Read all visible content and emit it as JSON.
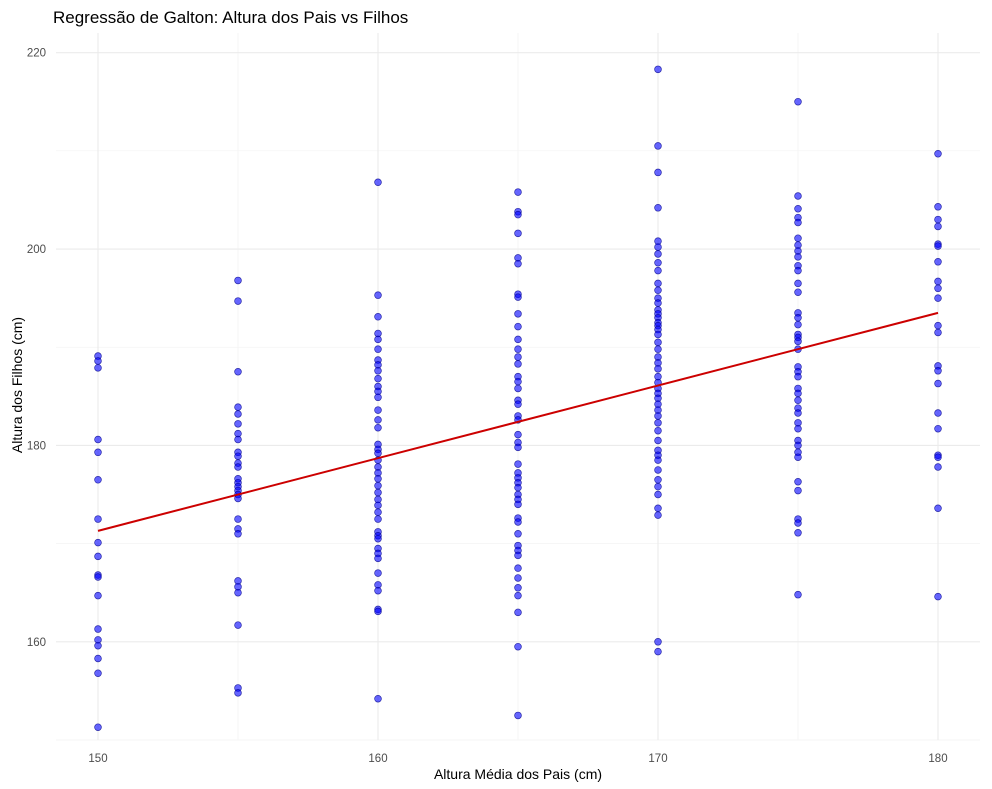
{
  "chart_data": {
    "type": "scatter",
    "title": "Regressão de Galton: Altura dos Pais vs Filhos",
    "xlabel": "Altura Média dos Pais (cm)",
    "ylabel": "Altura dos Filhos (cm)",
    "xlim": [
      148.5,
      181.5
    ],
    "ylim": [
      150,
      222
    ],
    "x_ticks": [
      150,
      160,
      170,
      180
    ],
    "y_ticks": [
      160,
      180,
      200,
      220
    ],
    "x_minor_ticks": [
      155,
      165,
      175
    ],
    "y_minor_ticks": [
      150,
      170,
      190,
      210
    ],
    "grid": true,
    "legend": "none",
    "point_color": "#0000ff",
    "line_color": "#cc0000",
    "series": [
      {
        "kind": "points",
        "points": [
          [
            150,
            189.1
          ],
          [
            150,
            188.6
          ],
          [
            150,
            187.9
          ],
          [
            150,
            180.6
          ],
          [
            150,
            179.3
          ],
          [
            150,
            176.5
          ],
          [
            150,
            172.5
          ],
          [
            150,
            170.1
          ],
          [
            150,
            168.7
          ],
          [
            150,
            166.8
          ],
          [
            150,
            166.6
          ],
          [
            150,
            164.7
          ],
          [
            150,
            161.3
          ],
          [
            150,
            160.2
          ],
          [
            150,
            159.6
          ],
          [
            150,
            158.3
          ],
          [
            150,
            156.8
          ],
          [
            150,
            151.3
          ],
          [
            155,
            196.8
          ],
          [
            155,
            194.7
          ],
          [
            155,
            187.5
          ],
          [
            155,
            183.9
          ],
          [
            155,
            183.2
          ],
          [
            155,
            182.2
          ],
          [
            155,
            181.2
          ],
          [
            155,
            180.6
          ],
          [
            155,
            179.3
          ],
          [
            155,
            178.9
          ],
          [
            155,
            178.2
          ],
          [
            155,
            177.8
          ],
          [
            155,
            176.6
          ],
          [
            155,
            176.2
          ],
          [
            155,
            175.8
          ],
          [
            155,
            175.4
          ],
          [
            155,
            175.0
          ],
          [
            155,
            174.6
          ],
          [
            155,
            172.5
          ],
          [
            155,
            171.5
          ],
          [
            155,
            171.0
          ],
          [
            155,
            166.2
          ],
          [
            155,
            165.6
          ],
          [
            155,
            165.0
          ],
          [
            155,
            161.7
          ],
          [
            155,
            155.3
          ],
          [
            155,
            154.8
          ],
          [
            160,
            206.8
          ],
          [
            160,
            195.3
          ],
          [
            160,
            193.1
          ],
          [
            160,
            191.4
          ],
          [
            160,
            190.8
          ],
          [
            160,
            189.8
          ],
          [
            160,
            188.7
          ],
          [
            160,
            188.2
          ],
          [
            160,
            187.6
          ],
          [
            160,
            186.8
          ],
          [
            160,
            186.0
          ],
          [
            160,
            185.5
          ],
          [
            160,
            184.9
          ],
          [
            160,
            183.6
          ],
          [
            160,
            182.6
          ],
          [
            160,
            181.8
          ],
          [
            160,
            180.1
          ],
          [
            160,
            179.6
          ],
          [
            160,
            179.2
          ],
          [
            160,
            178.5
          ],
          [
            160,
            177.8
          ],
          [
            160,
            177.2
          ],
          [
            160,
            176.6
          ],
          [
            160,
            175.9
          ],
          [
            160,
            175.2
          ],
          [
            160,
            174.5
          ],
          [
            160,
            173.9
          ],
          [
            160,
            173.2
          ],
          [
            160,
            172.5
          ],
          [
            160,
            171.2
          ],
          [
            160,
            170.8
          ],
          [
            160,
            170.5
          ],
          [
            160,
            169.5
          ],
          [
            160,
            169.0
          ],
          [
            160,
            168.5
          ],
          [
            160,
            167.0
          ],
          [
            160,
            165.8
          ],
          [
            160,
            165.2
          ],
          [
            160,
            163.3
          ],
          [
            160,
            163.1
          ],
          [
            160,
            154.2
          ],
          [
            165,
            205.8
          ],
          [
            165,
            203.8
          ],
          [
            165,
            203.5
          ],
          [
            165,
            201.6
          ],
          [
            165,
            199.1
          ],
          [
            165,
            198.5
          ],
          [
            165,
            195.4
          ],
          [
            165,
            195.1
          ],
          [
            165,
            193.4
          ],
          [
            165,
            192.1
          ],
          [
            165,
            190.8
          ],
          [
            165,
            189.8
          ],
          [
            165,
            189.0
          ],
          [
            165,
            188.3
          ],
          [
            165,
            187.0
          ],
          [
            165,
            186.5
          ],
          [
            165,
            185.8
          ],
          [
            165,
            184.6
          ],
          [
            165,
            184.2
          ],
          [
            165,
            183.0
          ],
          [
            165,
            182.6
          ],
          [
            165,
            181.1
          ],
          [
            165,
            180.3
          ],
          [
            165,
            179.8
          ],
          [
            165,
            178.1
          ],
          [
            165,
            177.2
          ],
          [
            165,
            176.7
          ],
          [
            165,
            176.2
          ],
          [
            165,
            175.7
          ],
          [
            165,
            175.0
          ],
          [
            165,
            174.5
          ],
          [
            165,
            174.0
          ],
          [
            165,
            172.6
          ],
          [
            165,
            172.2
          ],
          [
            165,
            171.0
          ],
          [
            165,
            169.8
          ],
          [
            165,
            169.3
          ],
          [
            165,
            168.8
          ],
          [
            165,
            167.5
          ],
          [
            165,
            166.5
          ],
          [
            165,
            165.5
          ],
          [
            165,
            164.7
          ],
          [
            165,
            163.0
          ],
          [
            165,
            159.5
          ],
          [
            165,
            152.5
          ],
          [
            170,
            218.3
          ],
          [
            170,
            210.5
          ],
          [
            170,
            207.8
          ],
          [
            170,
            204.2
          ],
          [
            170,
            200.8
          ],
          [
            170,
            200.2
          ],
          [
            170,
            199.5
          ],
          [
            170,
            198.6
          ],
          [
            170,
            197.8
          ],
          [
            170,
            196.5
          ],
          [
            170,
            195.8
          ],
          [
            170,
            195.0
          ],
          [
            170,
            194.5
          ],
          [
            170,
            193.8
          ],
          [
            170,
            193.4
          ],
          [
            170,
            193.0
          ],
          [
            170,
            192.5
          ],
          [
            170,
            192.2
          ],
          [
            170,
            191.8
          ],
          [
            170,
            191.3
          ],
          [
            170,
            190.5
          ],
          [
            170,
            189.8
          ],
          [
            170,
            189.0
          ],
          [
            170,
            188.4
          ],
          [
            170,
            187.8
          ],
          [
            170,
            187.0
          ],
          [
            170,
            186.4
          ],
          [
            170,
            185.8
          ],
          [
            170,
            185.3
          ],
          [
            170,
            184.8
          ],
          [
            170,
            184.2
          ],
          [
            170,
            183.6
          ],
          [
            170,
            183.0
          ],
          [
            170,
            182.3
          ],
          [
            170,
            181.5
          ],
          [
            170,
            180.5
          ],
          [
            170,
            179.5
          ],
          [
            170,
            179.0
          ],
          [
            170,
            178.5
          ],
          [
            170,
            177.5
          ],
          [
            170,
            176.5
          ],
          [
            170,
            175.8
          ],
          [
            170,
            175.0
          ],
          [
            170,
            173.6
          ],
          [
            170,
            172.9
          ],
          [
            170,
            160.0
          ],
          [
            170,
            159.0
          ],
          [
            175,
            215.0
          ],
          [
            175,
            205.4
          ],
          [
            175,
            204.1
          ],
          [
            175,
            203.2
          ],
          [
            175,
            202.7
          ],
          [
            175,
            201.1
          ],
          [
            175,
            200.4
          ],
          [
            175,
            199.8
          ],
          [
            175,
            199.2
          ],
          [
            175,
            198.3
          ],
          [
            175,
            197.8
          ],
          [
            175,
            196.5
          ],
          [
            175,
            195.6
          ],
          [
            175,
            193.5
          ],
          [
            175,
            193.0
          ],
          [
            175,
            192.3
          ],
          [
            175,
            191.3
          ],
          [
            175,
            191.0
          ],
          [
            175,
            190.6
          ],
          [
            175,
            189.8
          ],
          [
            175,
            188.0
          ],
          [
            175,
            187.5
          ],
          [
            175,
            187.0
          ],
          [
            175,
            185.8
          ],
          [
            175,
            185.3
          ],
          [
            175,
            184.6
          ],
          [
            175,
            183.8
          ],
          [
            175,
            183.3
          ],
          [
            175,
            182.3
          ],
          [
            175,
            181.7
          ],
          [
            175,
            180.5
          ],
          [
            175,
            180.0
          ],
          [
            175,
            179.3
          ],
          [
            175,
            178.8
          ],
          [
            175,
            176.3
          ],
          [
            175,
            175.4
          ],
          [
            175,
            172.5
          ],
          [
            175,
            172.1
          ],
          [
            175,
            171.1
          ],
          [
            175,
            164.8
          ],
          [
            180,
            209.7
          ],
          [
            180,
            204.3
          ],
          [
            180,
            203.0
          ],
          [
            180,
            202.3
          ],
          [
            180,
            200.5
          ],
          [
            180,
            200.3
          ],
          [
            180,
            198.7
          ],
          [
            180,
            196.7
          ],
          [
            180,
            196.0
          ],
          [
            180,
            195.0
          ],
          [
            180,
            192.2
          ],
          [
            180,
            191.5
          ],
          [
            180,
            188.1
          ],
          [
            180,
            187.6
          ],
          [
            180,
            186.3
          ],
          [
            180,
            183.3
          ],
          [
            180,
            181.7
          ],
          [
            180,
            179.0
          ],
          [
            180,
            178.8
          ],
          [
            180,
            177.8
          ],
          [
            180,
            173.6
          ],
          [
            180,
            164.6
          ]
        ]
      },
      {
        "kind": "regression-line",
        "x": [
          150,
          180
        ],
        "y": [
          171.3,
          193.5
        ]
      }
    ]
  }
}
